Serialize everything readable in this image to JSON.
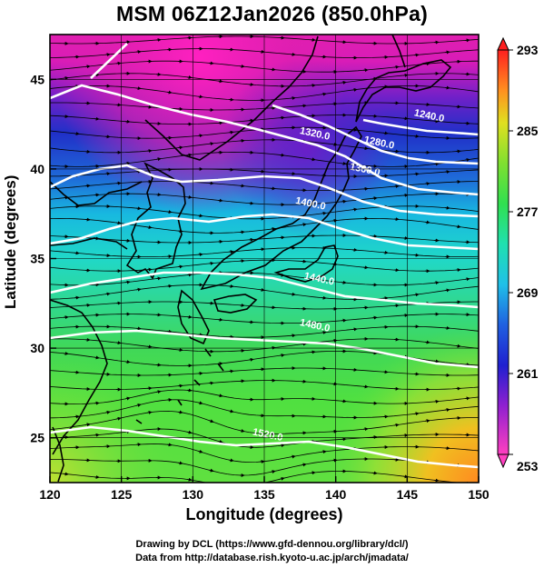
{
  "title": "MSM 06Z12Jan2026 (850.0hPa)",
  "xlabel": "Longitude (degrees)",
  "ylabel": "Latitude  (degrees)",
  "credits": {
    "line1": "Drawing by DCL (https://www.gfd-dennou.org/library/dcl/)",
    "line2": "Data from http://database.rish.kyoto-u.ac.jp/arch/jmadata/"
  },
  "map": {
    "lon_range": [
      120,
      150
    ],
    "lat_range": [
      22.5,
      47.5
    ],
    "x_ticks": [
      "120",
      "125",
      "130",
      "135",
      "140",
      "145",
      "150"
    ],
    "y_ticks": [
      "25",
      "30",
      "35",
      "40",
      "45"
    ],
    "colorbar_ticks": [
      "253",
      "261",
      "269",
      "277",
      "285",
      "293"
    ],
    "colorbar_range": [
      253,
      293
    ],
    "contour_labels": [
      {
        "text": "1240.0",
        "lon": 146.5,
        "lat": 42.8
      },
      {
        "text": "1280.0",
        "lon": 143.0,
        "lat": 41.3
      },
      {
        "text": "1320.0",
        "lon": 138.5,
        "lat": 41.8
      },
      {
        "text": "1360.0",
        "lon": 142.0,
        "lat": 39.8
      },
      {
        "text": "1400.0",
        "lon": 138.2,
        "lat": 37.9
      },
      {
        "text": "1440.0",
        "lon": 138.8,
        "lat": 33.7
      },
      {
        "text": "1480.0",
        "lon": 138.5,
        "lat": 31.1
      },
      {
        "text": "1520.0",
        "lon": 135.2,
        "lat": 25.0
      }
    ],
    "colors": {
      "cold": "#e01fb0",
      "cool": "#2040d0",
      "mid": "#20e0c0",
      "warm": "#40e040",
      "hot": "#e0e020",
      "very_hot": "#ff8020",
      "contour": "#ffffff",
      "coast": "#000000"
    }
  }
}
